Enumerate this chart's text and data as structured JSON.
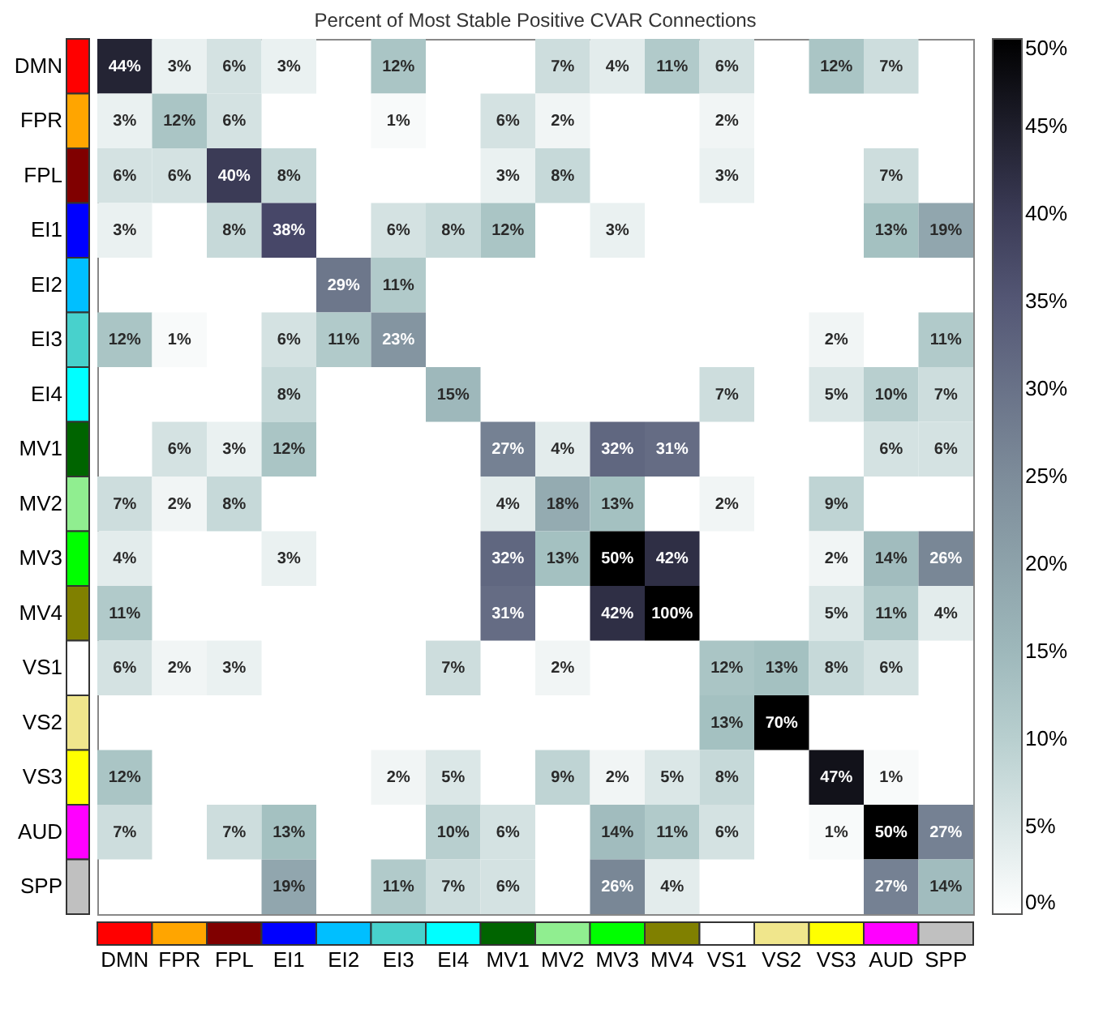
{
  "chart_data": {
    "type": "heatmap",
    "title": "Percent of Most Stable Positive CVAR Connections",
    "categories": [
      "DMN",
      "FPR",
      "FPL",
      "EI1",
      "EI2",
      "EI3",
      "EI4",
      "MV1",
      "MV2",
      "MV3",
      "MV4",
      "VS1",
      "VS2",
      "VS3",
      "AUD",
      "SPP"
    ],
    "y_categories": [
      "DMN",
      "FPR",
      "FPL",
      "EI1",
      "EI2",
      "EI3",
      "EI4",
      "MV1",
      "MV2",
      "MV3",
      "MV4",
      "VS1",
      "VS2",
      "VS3",
      "AUD",
      "SPP"
    ],
    "cells": [
      [
        44,
        3,
        6,
        3,
        null,
        12,
        null,
        null,
        7,
        4,
        11,
        6,
        null,
        12,
        7,
        null
      ],
      [
        3,
        12,
        6,
        null,
        null,
        1,
        null,
        6,
        2,
        null,
        null,
        2,
        null,
        null,
        null,
        null
      ],
      [
        6,
        6,
        40,
        8,
        null,
        null,
        null,
        3,
        8,
        null,
        null,
        3,
        null,
        null,
        7,
        null
      ],
      [
        3,
        null,
        8,
        38,
        null,
        6,
        8,
        12,
        null,
        3,
        null,
        null,
        null,
        null,
        13,
        19
      ],
      [
        null,
        null,
        null,
        null,
        29,
        11,
        null,
        null,
        null,
        null,
        null,
        null,
        null,
        null,
        null,
        null
      ],
      [
        12,
        1,
        null,
        6,
        11,
        23,
        null,
        null,
        null,
        null,
        null,
        null,
        null,
        2,
        null,
        11
      ],
      [
        null,
        null,
        null,
        8,
        null,
        null,
        15,
        null,
        null,
        null,
        null,
        7,
        null,
        5,
        10,
        7
      ],
      [
        null,
        6,
        3,
        12,
        null,
        null,
        null,
        27,
        4,
        32,
        31,
        null,
        null,
        null,
        6,
        6
      ],
      [
        7,
        2,
        8,
        null,
        null,
        null,
        null,
        4,
        18,
        13,
        null,
        2,
        null,
        9,
        null,
        null
      ],
      [
        4,
        null,
        null,
        3,
        null,
        null,
        null,
        32,
        13,
        50,
        42,
        null,
        null,
        2,
        14,
        26
      ],
      [
        11,
        null,
        null,
        null,
        null,
        null,
        null,
        31,
        null,
        42,
        100,
        null,
        null,
        5,
        11,
        4
      ],
      [
        6,
        2,
        3,
        null,
        null,
        null,
        7,
        null,
        2,
        null,
        null,
        12,
        13,
        8,
        6,
        null
      ],
      [
        null,
        null,
        null,
        null,
        null,
        null,
        null,
        null,
        null,
        null,
        null,
        13,
        70,
        null,
        null,
        null
      ],
      [
        12,
        null,
        null,
        null,
        null,
        2,
        5,
        null,
        9,
        2,
        5,
        8,
        null,
        47,
        1,
        null
      ],
      [
        7,
        null,
        7,
        13,
        null,
        null,
        10,
        6,
        null,
        14,
        11,
        6,
        null,
        1,
        50,
        27
      ],
      [
        null,
        null,
        null,
        19,
        null,
        11,
        7,
        6,
        null,
        26,
        4,
        null,
        null,
        null,
        27,
        14
      ]
    ],
    "cell_labels": [
      [
        "44%",
        "3%",
        "6%",
        "3%",
        null,
        "12%",
        null,
        null,
        "7%",
        "4%",
        "11%",
        "6%",
        null,
        "12%",
        "7%",
        null
      ],
      [
        "3%",
        "12%",
        "6%",
        null,
        null,
        "1%",
        null,
        "6%",
        "2%",
        null,
        null,
        "2%",
        null,
        null,
        null,
        null
      ],
      [
        "6%",
        "6%",
        "40%",
        "8%",
        null,
        null,
        null,
        "3%",
        "8%",
        null,
        null,
        "3%",
        null,
        null,
        "7%",
        null
      ],
      [
        "3%",
        null,
        "8%",
        "38%",
        null,
        "6%",
        "8%",
        "12%",
        null,
        "3%",
        null,
        null,
        null,
        null,
        "13%",
        "19%"
      ],
      [
        null,
        null,
        null,
        null,
        "29%",
        "11%",
        null,
        null,
        null,
        null,
        null,
        null,
        null,
        null,
        null,
        null
      ],
      [
        "12%",
        "1%",
        null,
        "6%",
        "11%",
        "23%",
        null,
        null,
        null,
        null,
        null,
        null,
        null,
        "2%",
        null,
        "11%"
      ],
      [
        null,
        null,
        null,
        "8%",
        null,
        null,
        "15%",
        null,
        null,
        null,
        null,
        "7%",
        null,
        "5%",
        "10%",
        "7%"
      ],
      [
        null,
        "6%",
        "3%",
        "12%",
        null,
        null,
        null,
        "27%",
        "4%",
        "32%",
        "31%",
        null,
        null,
        null,
        "6%",
        "6%"
      ],
      [
        "7%",
        "2%",
        "8%",
        null,
        null,
        null,
        null,
        "4%",
        "18%",
        "13%",
        null,
        "2%",
        null,
        "9%",
        null,
        null
      ],
      [
        "4%",
        null,
        null,
        "3%",
        null,
        null,
        null,
        "32%",
        "13%",
        "50%",
        "42%",
        null,
        null,
        "2%",
        "14%",
        "26%"
      ],
      [
        "11%",
        null,
        null,
        null,
        null,
        null,
        null,
        "31%",
        null,
        "42%",
        "100%",
        null,
        null,
        "5%",
        "11%",
        "4%"
      ],
      [
        "6%",
        "2%",
        "3%",
        null,
        null,
        null,
        "7%",
        null,
        "2%",
        null,
        null,
        "12%",
        "13%",
        "8%",
        "6%",
        null
      ],
      [
        null,
        null,
        null,
        null,
        null,
        null,
        null,
        null,
        null,
        null,
        null,
        "13%",
        "70%",
        null,
        null,
        null
      ],
      [
        "12%",
        null,
        null,
        null,
        null,
        "2%",
        "5%",
        null,
        "9%",
        "2%",
        "5%",
        "8%",
        null,
        "47%",
        "1%",
        null
      ],
      [
        "7%",
        null,
        "7%",
        "13%",
        null,
        null,
        "10%",
        "6%",
        null,
        "14%",
        "11%",
        "6%",
        null,
        "1%",
        "50%",
        "27%"
      ],
      [
        null,
        null,
        null,
        "19%",
        null,
        "11%",
        "7%",
        "6%",
        null,
        "26%",
        "4%",
        null,
        null,
        null,
        "27%",
        "14%"
      ]
    ],
    "clim": [
      0,
      50
    ],
    "cticks": [
      {
        "value": 0,
        "label": "0%"
      },
      {
        "value": 5,
        "label": "5%"
      },
      {
        "value": 10,
        "label": "10%"
      },
      {
        "value": 15,
        "label": "15%"
      },
      {
        "value": 20,
        "label": "20%"
      },
      {
        "value": 25,
        "label": "25%"
      },
      {
        "value": 30,
        "label": "30%"
      },
      {
        "value": 35,
        "label": "35%"
      },
      {
        "value": 40,
        "label": "40%"
      },
      {
        "value": 45,
        "label": "45%"
      },
      {
        "value": 50,
        "label": "50%"
      }
    ]
  }
}
